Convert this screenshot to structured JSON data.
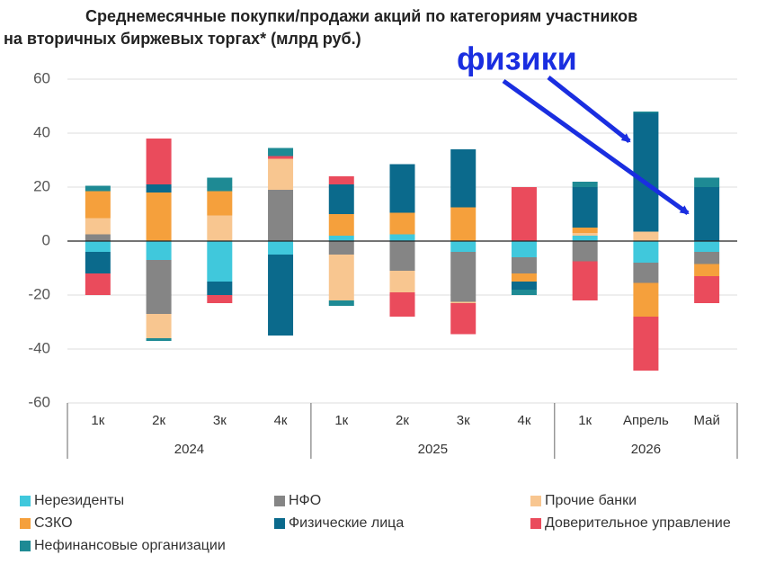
{
  "chart_data": {
    "type": "stacked_bar",
    "title_lines": [
      "Среднемесячные покупки/продажи акций по категориям участников",
      "на вторичных биржевых торгах* (млрд руб.)"
    ],
    "annotation": "физики",
    "groups": [
      {
        "name": "2024",
        "categories": [
          "1к",
          "2к",
          "3к",
          "4к"
        ]
      },
      {
        "name": "2025",
        "categories": [
          "1к",
          "2к",
          "3к",
          "4к"
        ]
      },
      {
        "name": "2026",
        "categories": [
          "1к",
          "Апрель",
          "Май"
        ]
      }
    ],
    "series": [
      {
        "name": "Нерезиденты",
        "color": "#40c8dc",
        "values": [
          -4,
          -7,
          -15,
          -5,
          2,
          2.5,
          -4,
          -6,
          2,
          -8,
          -4
        ]
      },
      {
        "name": "НФО",
        "color": "#858585",
        "values": [
          2.5,
          -20,
          0,
          19,
          -5,
          -11,
          -18.5,
          -6,
          -7.5,
          -7.5,
          -4.5
        ]
      },
      {
        "name": "Прочие банки",
        "color": "#f8c690",
        "values": [
          6,
          -9,
          9.5,
          11.5,
          -17,
          -8,
          -0.5,
          0,
          1,
          3.5,
          0
        ]
      },
      {
        "name": "СЗКО",
        "color": "#f5a03c",
        "values": [
          10,
          18,
          9,
          0,
          8,
          8,
          12.5,
          -3,
          2,
          -12.5,
          -4.5
        ]
      },
      {
        "name": "Физические лица",
        "color": "#0b6a8c",
        "values": [
          -8,
          3,
          -5,
          -30,
          11,
          18,
          21.5,
          -3,
          15,
          44,
          20
        ]
      },
      {
        "name": "Доверительное управление",
        "color": "#ea4b5c",
        "values": [
          -8,
          17,
          -3,
          1,
          3,
          -9,
          -11.5,
          20,
          -14.5,
          -20,
          -10
        ]
      },
      {
        "name": "Нефинансовые организации",
        "color": "#1e8a94",
        "values": [
          2,
          -1,
          5,
          3,
          -2,
          0,
          0,
          -2,
          2,
          0.5,
          3.5
        ]
      }
    ],
    "ylim": [
      -60,
      60
    ],
    "yticks": [
      -60,
      -40,
      -20,
      0,
      20,
      40,
      60
    ],
    "grid": true
  }
}
